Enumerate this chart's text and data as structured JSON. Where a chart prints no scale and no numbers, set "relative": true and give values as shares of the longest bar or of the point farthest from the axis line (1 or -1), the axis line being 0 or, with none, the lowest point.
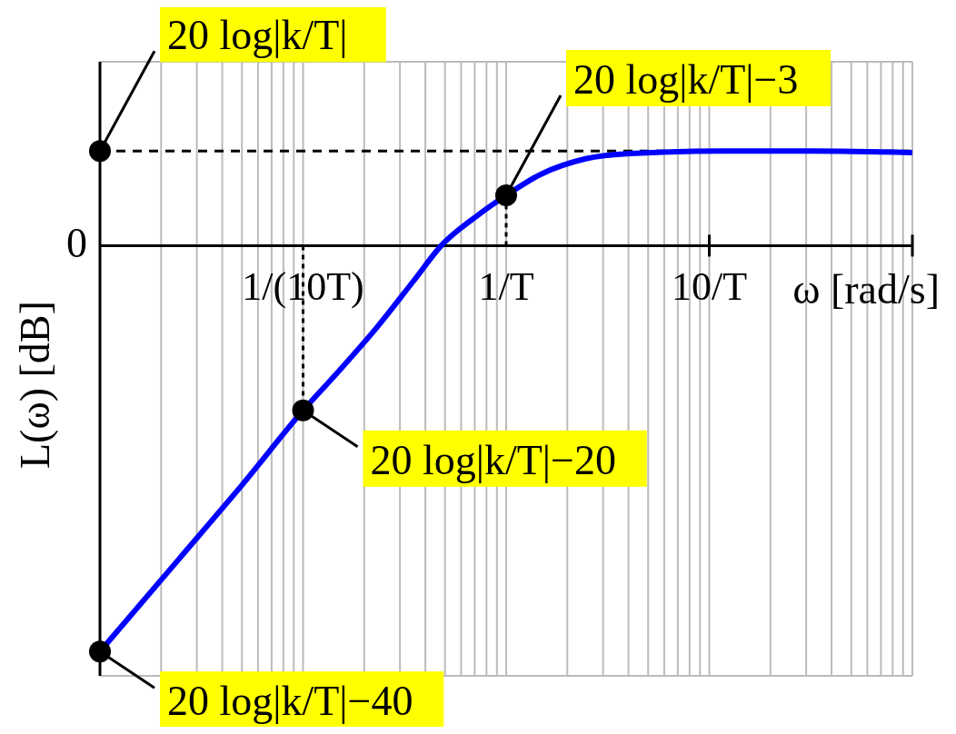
{
  "chart_data": {
    "type": "line",
    "relative": true,
    "xlabel": "ω [rad/s]",
    "ylabel": "L(ω) [dB]",
    "log": "x",
    "grid": true,
    "legend": false,
    "xlim": [
      0.01,
      100
    ],
    "xticks": [
      {
        "value": 0.1,
        "label": "1/(10T)"
      },
      {
        "value": 1,
        "label": "1/T"
      },
      {
        "value": 10,
        "label": "10/T"
      },
      {
        "value": 100,
        "label": null
      }
    ],
    "series": [
      {
        "color": "#0000ff",
        "x": [
          0.01,
          0.0246,
          0.0504,
          0.1,
          0.15,
          0.234,
          0.35,
          0.479,
          0.721,
          1,
          1.47,
          2.46,
          4.1,
          11.4,
          31.8,
          100
        ],
        "values": [
          -1,
          -0.771,
          -0.588,
          -0.406,
          -0.309,
          -0.198,
          -0.087,
          0,
          0.074,
          0.124,
          0.175,
          0.214,
          0.227,
          0.233,
          0.233,
          0.229
        ]
      }
    ],
    "ref_lines": [
      {
        "axis": "y",
        "value": 0.233,
        "line_style": "dashed",
        "color": "#000000"
      },
      {
        "axis": "x",
        "value": 0.1,
        "line_style": "dotted",
        "color": "#000000"
      },
      {
        "axis": "x",
        "value": 1,
        "line_style": "dotted",
        "color": "#000000"
      }
    ],
    "annotations": [
      "0",
      {
        "text": "20 log|k/T|",
        "x": 0.01,
        "y": 0.233
      },
      {
        "text": "20 log|k/T|−3",
        "x": 1,
        "y": 0.124
      },
      {
        "text": "20 log|k/T|−20",
        "x": 0.1,
        "y": -0.406
      },
      {
        "text": "20 log|k/T|−40",
        "x": 0.01,
        "y": -1
      }
    ]
  }
}
